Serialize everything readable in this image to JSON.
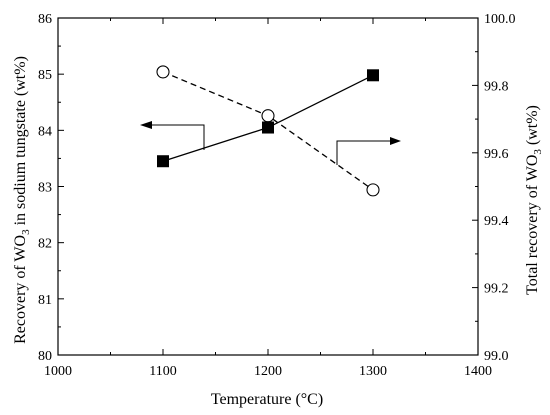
{
  "chart_data": {
    "type": "line",
    "xlabel": "Temperature (°C)",
    "xlim": [
      1000,
      1400
    ],
    "xticks": [
      1000,
      1100,
      1200,
      1300,
      1400
    ],
    "ylabel_left": {
      "pre": "Recovery of WO",
      "sub": "3",
      "post": " in sodium tungstate (wt%)"
    },
    "ylim_left": [
      80,
      86
    ],
    "yticks_left": [
      80,
      81,
      82,
      83,
      84,
      85,
      86
    ],
    "ylabel_right": {
      "pre": "Total recovery of WO",
      "sub": "3",
      "post": " (wt%)"
    },
    "ylim_right": [
      99.0,
      100.0
    ],
    "yticks_right": [
      "99.0",
      "99.2",
      "99.4",
      "99.6",
      "99.8",
      "100.0"
    ],
    "series": [
      {
        "axis": "left",
        "marker": "filled-square",
        "line": "solid",
        "x": [
          1100,
          1200,
          1300
        ],
        "values": [
          83.45,
          84.05,
          84.98
        ]
      },
      {
        "axis": "right",
        "marker": "open-circle",
        "line": "dashed",
        "x": [
          1100,
          1200,
          1300
        ],
        "values": [
          99.84,
          99.71,
          99.49
        ]
      }
    ]
  }
}
